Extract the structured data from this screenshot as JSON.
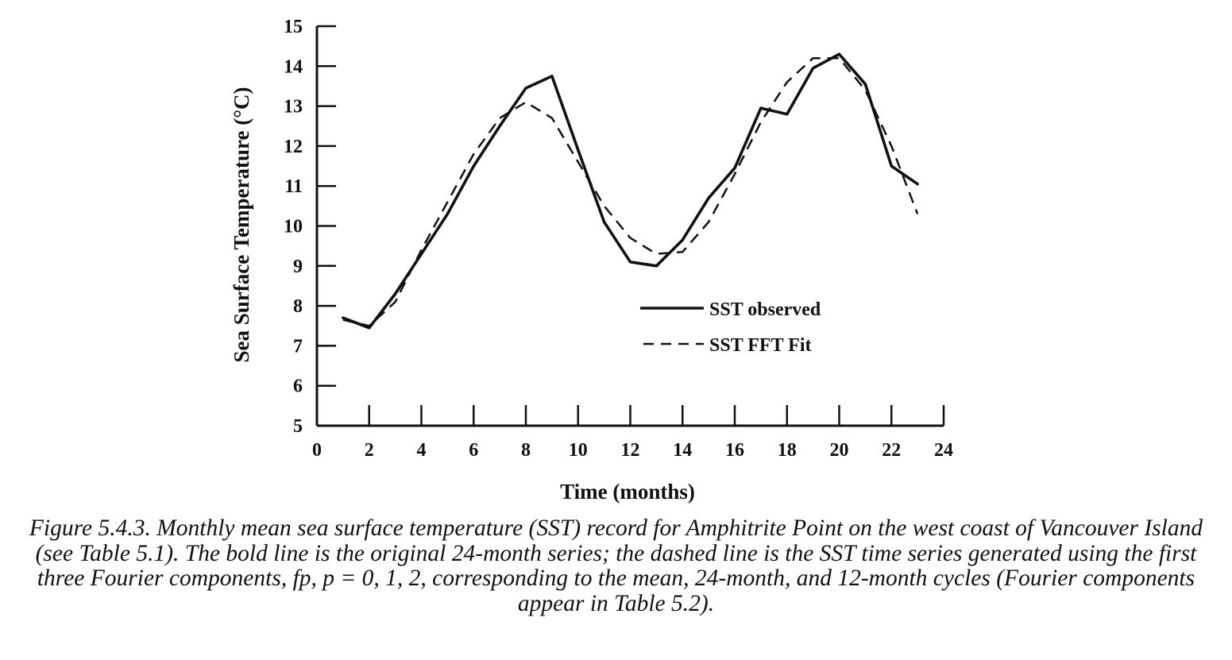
{
  "chart_data": {
    "type": "line",
    "xlabel": "Time (months)",
    "ylabel": "Sea Surface Temperature (°C)",
    "xlim": [
      0,
      24
    ],
    "ylim": [
      5,
      15
    ],
    "x_ticks": [
      "0",
      "2",
      "4",
      "6",
      "8",
      "10",
      "12",
      "14",
      "16",
      "18",
      "20",
      "22",
      "24"
    ],
    "y_ticks": [
      "5",
      "6",
      "7",
      "8",
      "9",
      "10",
      "11",
      "12",
      "13",
      "14",
      "15"
    ],
    "grid": false,
    "legend_position": "center-right",
    "series": [
      {
        "name": "SST observed",
        "style": "solid-bold",
        "x": [
          1,
          2,
          3,
          4,
          5,
          6,
          7,
          8,
          9,
          10,
          11,
          12,
          13,
          14,
          15,
          16,
          17,
          18,
          19,
          20,
          21,
          22,
          23
        ],
        "y": [
          7.7,
          7.45,
          8.3,
          9.3,
          10.3,
          11.5,
          12.5,
          13.45,
          13.75,
          11.9,
          10.1,
          9.1,
          9.0,
          9.65,
          10.7,
          11.45,
          12.95,
          12.8,
          13.95,
          14.3,
          13.55,
          11.5,
          11.05
        ]
      },
      {
        "name": "SST FFT Fit",
        "style": "dashed",
        "x": [
          1,
          2,
          3,
          4,
          5,
          6,
          7,
          8,
          9,
          10,
          11,
          12,
          13,
          14,
          15,
          16,
          17,
          18,
          19,
          20,
          21,
          22,
          23
        ],
        "y": [
          7.65,
          7.5,
          8.1,
          9.4,
          10.6,
          11.8,
          12.7,
          13.1,
          12.7,
          11.6,
          10.5,
          9.7,
          9.3,
          9.35,
          10.1,
          11.3,
          12.6,
          13.6,
          14.2,
          14.2,
          13.4,
          12.0,
          10.3
        ]
      }
    ]
  },
  "caption": "Figure 5.4.3. Monthly mean sea surface temperature (SST) record for Amphitrite Point on the west coast of Vancouver Island (see Table 5.1). The bold line is the original 24-month series; the dashed line is the SST time series generated using the first three Fourier components, fp, p = 0, 1, 2, corresponding to the mean, 24-month, and 12-month cycles (Fourier components appear in Table 5.2)."
}
